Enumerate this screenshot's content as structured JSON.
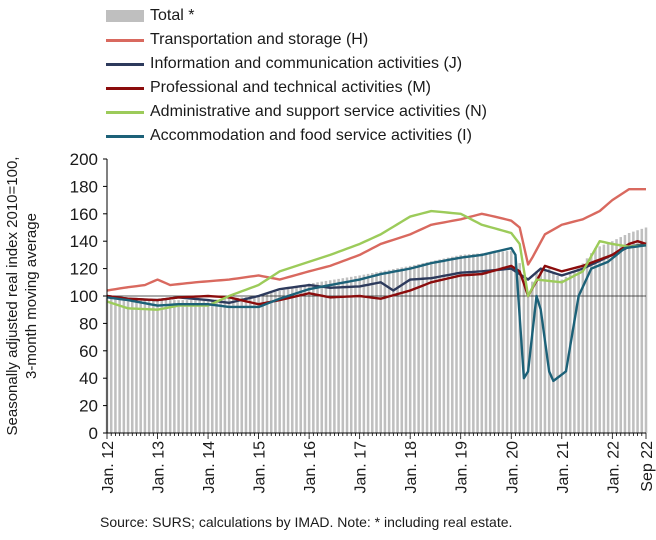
{
  "legend": [
    {
      "key": "total",
      "label": "Total *",
      "type": "bar",
      "color": "#bfbfbf"
    },
    {
      "key": "transport",
      "label": "Transportation and storage (H)",
      "type": "line",
      "color": "#d9695f"
    },
    {
      "key": "info",
      "label": "Information and communication activities (J)",
      "type": "line",
      "color": "#2d3a5c"
    },
    {
      "key": "prof",
      "label": "Professional and technical activities (M)",
      "type": "line",
      "color": "#8b0c0c"
    },
    {
      "key": "admin",
      "label": "Administrative and support service activities (N)",
      "type": "line",
      "color": "#9ccb5a"
    },
    {
      "key": "accom",
      "label": "Accommodation and food service activities (I)",
      "type": "line",
      "color": "#1c6178"
    }
  ],
  "source_note": "Source:  SURS; calculations by IMAD. Note: * including real estate.",
  "y_axis_title_line1": "Seasonally adjusted real index 2010=100,",
  "y_axis_title_line2": "3-month moving average",
  "chart_data": {
    "type": "line",
    "x_start": "2012-01",
    "x_end": "2022-09",
    "ylim": [
      0,
      200
    ],
    "yticks": [
      0,
      20,
      40,
      60,
      80,
      100,
      120,
      140,
      160,
      180,
      200
    ],
    "xtick_labels": [
      {
        "label": "Jan. 12",
        "date": "2012-01"
      },
      {
        "label": "Jan. 13",
        "date": "2013-01"
      },
      {
        "label": "Jan. 14",
        "date": "2014-01"
      },
      {
        "label": "Jan. 15",
        "date": "2015-01"
      },
      {
        "label": "Jan. 16",
        "date": "2016-01"
      },
      {
        "label": "Jan. 17",
        "date": "2017-01"
      },
      {
        "label": "Jan. 18",
        "date": "2018-01"
      },
      {
        "label": "Jan. 19",
        "date": "2019-01"
      },
      {
        "label": "Jan. 20",
        "date": "2020-01"
      },
      {
        "label": "Jan. 21",
        "date": "2021-01"
      },
      {
        "label": "Jan. 22",
        "date": "2022-01"
      },
      {
        "label": "Sep 22",
        "date": "2022-09"
      }
    ],
    "reference_line": 100,
    "series": [
      {
        "key": "total",
        "name": "Total *",
        "render": "bar",
        "points": [
          [
            "2012-01",
            99
          ],
          [
            "2013-01",
            97
          ],
          [
            "2014-01",
            97
          ],
          [
            "2015-01",
            100
          ],
          [
            "2016-01",
            109
          ],
          [
            "2017-01",
            115
          ],
          [
            "2018-01",
            122
          ],
          [
            "2019-01",
            130
          ],
          [
            "2020-01",
            133
          ],
          [
            "2020-03",
            124
          ],
          [
            "2020-05",
            103
          ],
          [
            "2020-07",
            118
          ],
          [
            "2020-10",
            120
          ],
          [
            "2021-01",
            112
          ],
          [
            "2021-05",
            120
          ],
          [
            "2021-09",
            135
          ],
          [
            "2022-01",
            140
          ],
          [
            "2022-05",
            146
          ],
          [
            "2022-09",
            150
          ]
        ]
      },
      {
        "key": "transport",
        "name": "Transportation and storage (H)",
        "render": "line",
        "points": [
          [
            "2012-01",
            104
          ],
          [
            "2012-05",
            106
          ],
          [
            "2012-10",
            108
          ],
          [
            "2013-01",
            112
          ],
          [
            "2013-04",
            108
          ],
          [
            "2013-10",
            110
          ],
          [
            "2014-06",
            112
          ],
          [
            "2015-01",
            115
          ],
          [
            "2015-06",
            112
          ],
          [
            "2016-01",
            118
          ],
          [
            "2016-06",
            122
          ],
          [
            "2017-01",
            130
          ],
          [
            "2017-06",
            138
          ],
          [
            "2018-01",
            145
          ],
          [
            "2018-06",
            152
          ],
          [
            "2019-01",
            156
          ],
          [
            "2019-06",
            160
          ],
          [
            "2019-09",
            158
          ],
          [
            "2020-01",
            155
          ],
          [
            "2020-03",
            150
          ],
          [
            "2020-05",
            123
          ],
          [
            "2020-06",
            128
          ],
          [
            "2020-09",
            145
          ],
          [
            "2021-01",
            152
          ],
          [
            "2021-06",
            156
          ],
          [
            "2021-10",
            162
          ],
          [
            "2022-01",
            170
          ],
          [
            "2022-05",
            178
          ],
          [
            "2022-09",
            178
          ]
        ]
      },
      {
        "key": "info",
        "name": "Information and communication activities (J)",
        "render": "line",
        "points": [
          [
            "2012-01",
            100
          ],
          [
            "2012-06",
            98
          ],
          [
            "2013-01",
            97
          ],
          [
            "2013-06",
            99
          ],
          [
            "2014-01",
            97
          ],
          [
            "2014-06",
            95
          ],
          [
            "2015-01",
            100
          ],
          [
            "2015-06",
            105
          ],
          [
            "2016-01",
            108
          ],
          [
            "2016-06",
            106
          ],
          [
            "2017-01",
            107
          ],
          [
            "2017-06",
            110
          ],
          [
            "2017-09",
            104
          ],
          [
            "2018-01",
            112
          ],
          [
            "2018-06",
            113
          ],
          [
            "2019-01",
            117
          ],
          [
            "2019-06",
            118
          ],
          [
            "2020-01",
            120
          ],
          [
            "2020-04",
            114
          ],
          [
            "2020-05",
            112
          ],
          [
            "2020-08",
            120
          ],
          [
            "2021-01",
            115
          ],
          [
            "2021-06",
            120
          ],
          [
            "2022-01",
            130
          ],
          [
            "2022-05",
            136
          ],
          [
            "2022-09",
            138
          ]
        ]
      },
      {
        "key": "prof",
        "name": "Professional and technical activities (M)",
        "render": "line",
        "points": [
          [
            "2012-01",
            100
          ],
          [
            "2012-06",
            98
          ],
          [
            "2013-01",
            97
          ],
          [
            "2013-06",
            99
          ],
          [
            "2014-01",
            100
          ],
          [
            "2014-06",
            99
          ],
          [
            "2015-01",
            94
          ],
          [
            "2015-06",
            97
          ],
          [
            "2016-01",
            102
          ],
          [
            "2016-06",
            99
          ],
          [
            "2017-01",
            100
          ],
          [
            "2017-06",
            98
          ],
          [
            "2018-01",
            104
          ],
          [
            "2018-06",
            110
          ],
          [
            "2019-01",
            115
          ],
          [
            "2019-06",
            116
          ],
          [
            "2020-01",
            122
          ],
          [
            "2020-03",
            118
          ],
          [
            "2020-05",
            100
          ],
          [
            "2020-09",
            122
          ],
          [
            "2021-01",
            118
          ],
          [
            "2021-06",
            122
          ],
          [
            "2022-01",
            130
          ],
          [
            "2022-05",
            138
          ],
          [
            "2022-07",
            140
          ],
          [
            "2022-09",
            138
          ]
        ]
      },
      {
        "key": "admin",
        "name": "Administrative and support service activities (N)",
        "render": "line",
        "points": [
          [
            "2012-01",
            96
          ],
          [
            "2012-06",
            91
          ],
          [
            "2013-01",
            90
          ],
          [
            "2013-06",
            93
          ],
          [
            "2014-01",
            93
          ],
          [
            "2014-06",
            100
          ],
          [
            "2015-01",
            108
          ],
          [
            "2015-06",
            118
          ],
          [
            "2016-01",
            125
          ],
          [
            "2016-06",
            130
          ],
          [
            "2017-01",
            138
          ],
          [
            "2017-06",
            145
          ],
          [
            "2018-01",
            158
          ],
          [
            "2018-06",
            162
          ],
          [
            "2019-01",
            160
          ],
          [
            "2019-06",
            152
          ],
          [
            "2020-01",
            146
          ],
          [
            "2020-03",
            138
          ],
          [
            "2020-05",
            100
          ],
          [
            "2020-07",
            112
          ],
          [
            "2021-01",
            110
          ],
          [
            "2021-06",
            118
          ],
          [
            "2021-10",
            140
          ],
          [
            "2022-01",
            138
          ],
          [
            "2022-05",
            136
          ],
          [
            "2022-09",
            137
          ]
        ]
      },
      {
        "key": "accom",
        "name": "Accommodation and food service activities (I)",
        "render": "line",
        "points": [
          [
            "2012-01",
            99
          ],
          [
            "2012-06",
            97
          ],
          [
            "2013-01",
            93
          ],
          [
            "2013-06",
            94
          ],
          [
            "2014-01",
            94
          ],
          [
            "2014-06",
            92
          ],
          [
            "2015-01",
            92
          ],
          [
            "2015-06",
            98
          ],
          [
            "2016-01",
            105
          ],
          [
            "2016-06",
            108
          ],
          [
            "2017-01",
            112
          ],
          [
            "2017-06",
            116
          ],
          [
            "2018-01",
            120
          ],
          [
            "2018-06",
            124
          ],
          [
            "2019-01",
            128
          ],
          [
            "2019-06",
            130
          ],
          [
            "2020-01",
            135
          ],
          [
            "2020-02",
            130
          ],
          [
            "2020-04",
            40
          ],
          [
            "2020-05",
            45
          ],
          [
            "2020-07",
            100
          ],
          [
            "2020-08",
            90
          ],
          [
            "2020-10",
            45
          ],
          [
            "2020-11",
            38
          ],
          [
            "2021-02",
            45
          ],
          [
            "2021-05",
            100
          ],
          [
            "2021-08",
            120
          ],
          [
            "2021-12",
            125
          ],
          [
            "2022-04",
            135
          ],
          [
            "2022-09",
            137
          ]
        ]
      }
    ]
  }
}
